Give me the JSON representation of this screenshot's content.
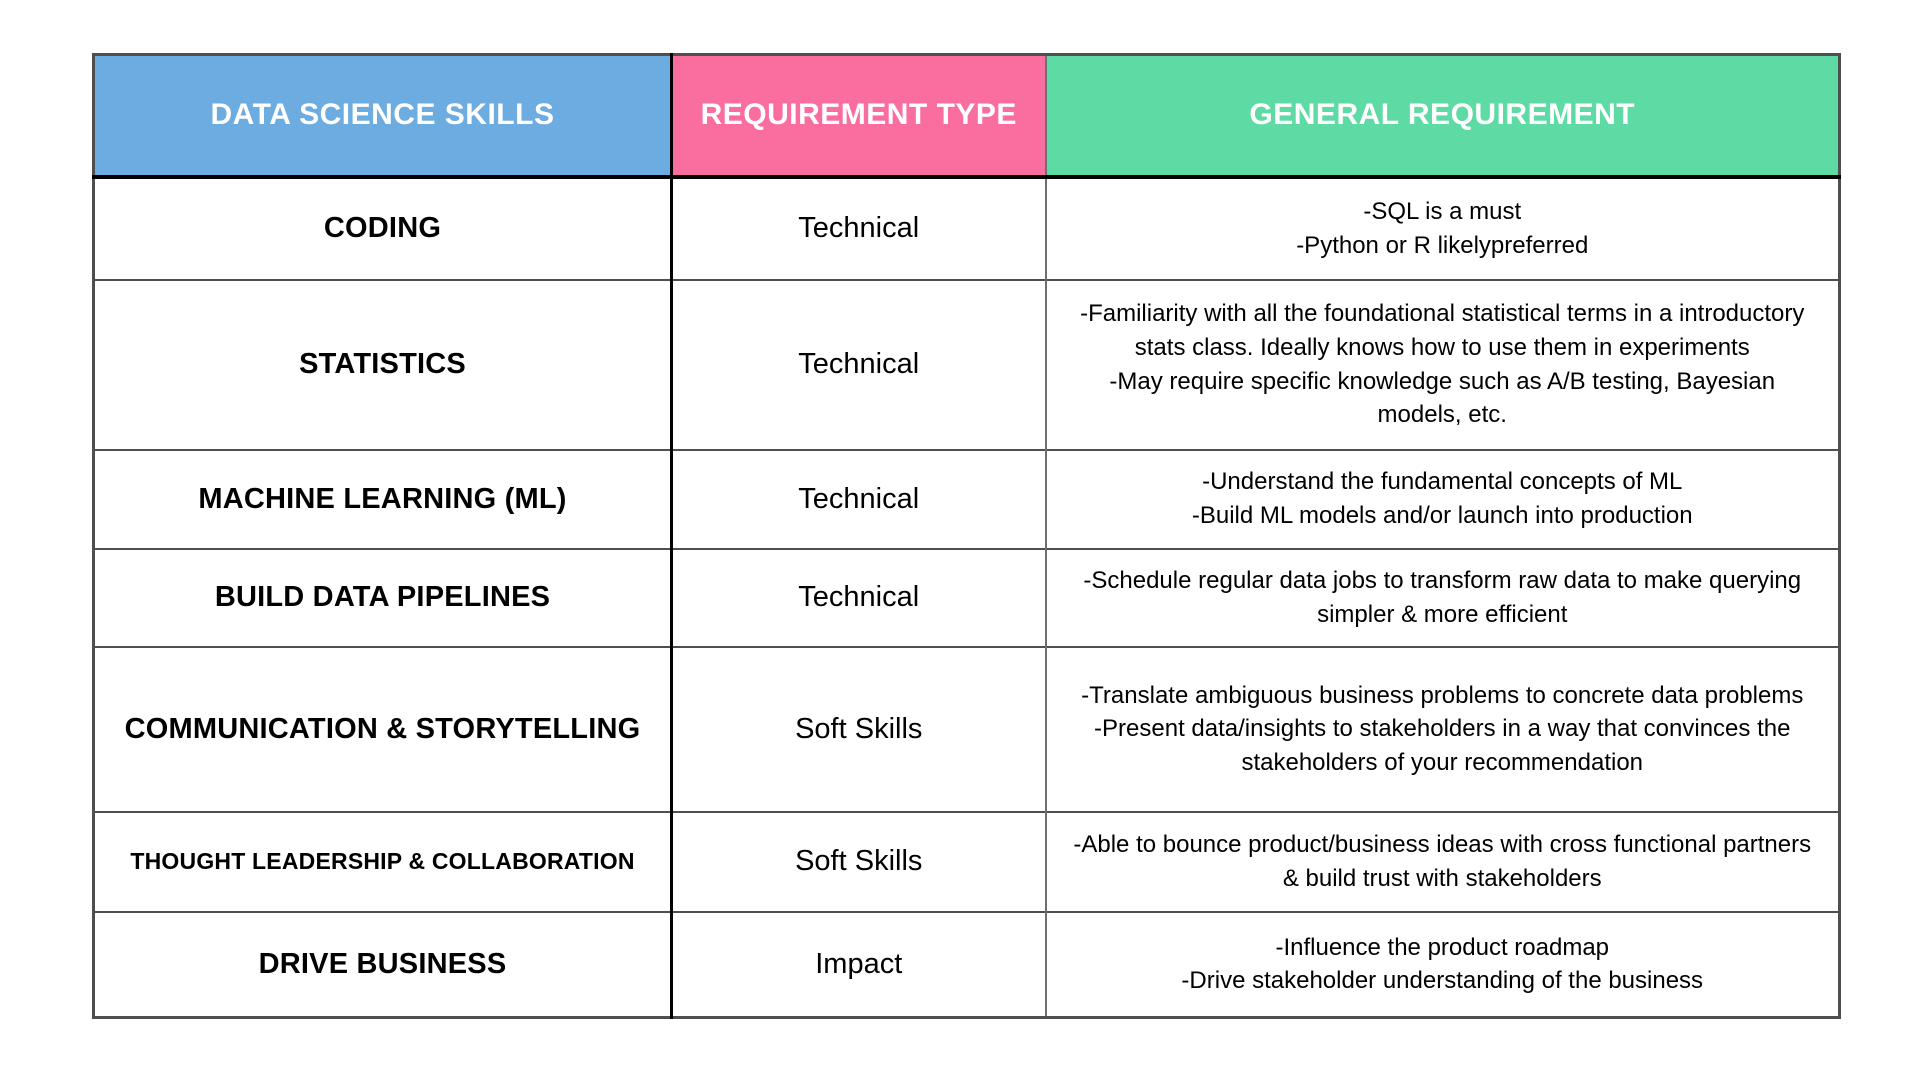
{
  "table": {
    "columns": [
      {
        "label": "DATA SCIENCE SKILLS",
        "color": "#6cace0"
      },
      {
        "label": "REQUIREMENT TYPE",
        "color": "#fa6e9f"
      },
      {
        "label": "GENERAL REQUIREMENT",
        "color": "#5edba5"
      }
    ],
    "rows": [
      {
        "skill": "CODING",
        "type": "Technical",
        "requirement": "-SQL is a must\n-Python or R likelypreferred"
      },
      {
        "skill": "STATISTICS",
        "type": "Technical",
        "requirement": "-Familiarity with all the foundational statistical terms in a introductory stats class. Ideally knows how to use them in experiments\n-May require specific knowledge such as A/B testing, Bayesian models, etc."
      },
      {
        "skill": "MACHINE LEARNING (ML)",
        "type": "Technical",
        "requirement": "-Understand the fundamental concepts of ML\n-Build ML models and/or launch into production"
      },
      {
        "skill": "BUILD DATA PIPELINES",
        "type": "Technical",
        "requirement": "-Schedule regular data jobs to transform raw data to make querying simpler & more efficient"
      },
      {
        "skill": "COMMUNICATION & STORYTELLING",
        "type": "Soft Skills",
        "requirement": "-Translate ambiguous business problems to concrete data problems\n-Present data/insights to stakeholders in a way that convinces the stakeholders of your recommendation"
      },
      {
        "skill": "THOUGHT LEADERSHIP & COLLABORATION",
        "type": "Soft Skills",
        "requirement": "-Able to bounce product/business ideas with cross functional partners & build trust with stakeholders"
      },
      {
        "skill": "DRIVE BUSINESS",
        "type": "Impact",
        "requirement": "-Influence the product roadmap\n-Drive stakeholder understanding of the business"
      }
    ]
  }
}
